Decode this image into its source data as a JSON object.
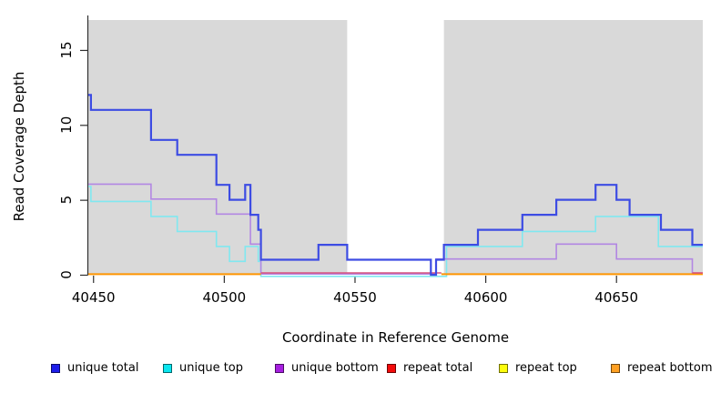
{
  "figure": {
    "xlabel": "Coordinate in Reference Genome",
    "ylabel": "Read Coverage Depth"
  },
  "legend": [
    {
      "label": "unique total",
      "color": "#1d1dea"
    },
    {
      "label": "unique top",
      "color": "#0ae6ef"
    },
    {
      "label": "unique bottom",
      "color": "#a61fe0"
    },
    {
      "label": "repeat total",
      "color": "#f30b0b"
    },
    {
      "label": "repeat top",
      "color": "#fdfd0c"
    },
    {
      "label": "repeat bottom",
      "color": "#ffa022"
    }
  ],
  "chart_data": {
    "type": "step-line",
    "title": "",
    "xlabel": "Coordinate in Reference Genome",
    "ylabel": "Read Coverage Depth",
    "xlim": [
      40448,
      40683
    ],
    "ylim": [
      0,
      17
    ],
    "xticks": [
      40450,
      40500,
      40550,
      40600,
      40650
    ],
    "yticks": [
      0,
      5,
      10,
      15
    ],
    "grid": false,
    "panel_color": "#d9d9d9",
    "gap_color": "#ffffff",
    "axis_color": "#2f2f2f",
    "background_bands": [
      {
        "x0": 40448,
        "x1": 40547
      },
      {
        "x0": 40584,
        "x1": 40683
      }
    ],
    "gap_region": {
      "x0": 40547,
      "x1": 40584
    },
    "series": [
      {
        "name": "unique top",
        "color": "#80e8f0",
        "width": 1.6,
        "y_offset": 1.8,
        "segments": [
          [
            [
              40448,
              6
            ],
            [
              40449,
              5
            ],
            [
              40472,
              4
            ],
            [
              40482,
              3
            ],
            [
              40497,
              2
            ],
            [
              40502,
              1
            ],
            [
              40508,
              2
            ],
            [
              40513,
              1
            ],
            [
              40514,
              0
            ],
            [
              40585,
              2
            ],
            [
              40614,
              3
            ],
            [
              40642,
              4
            ],
            [
              40666,
              2
            ],
            [
              40683,
              2
            ]
          ]
        ]
      },
      {
        "name": "unique bottom",
        "color": "#b287e3",
        "width": 1.6,
        "y_offset": -0.8,
        "segments": [
          [
            [
              40448,
              6
            ],
            [
              40472,
              5
            ],
            [
              40497,
              4
            ],
            [
              40510,
              2
            ],
            [
              40514,
              0
            ],
            [
              40581,
              1
            ],
            [
              40627,
              2
            ],
            [
              40650,
              1
            ],
            [
              40679,
              0
            ],
            [
              40683,
              0
            ]
          ]
        ]
      },
      {
        "name": "repeat bottom",
        "color": "#ff9500",
        "width": 2.0,
        "y_offset": -0.6,
        "segments": [
          [
            [
              40448,
              0
            ],
            [
              40514,
              0
            ]
          ],
          [
            [
              40583,
              0
            ],
            [
              40683,
              0
            ]
          ]
        ]
      },
      {
        "name": "repeat total",
        "color": "#d7537d",
        "width": 1.6,
        "y_offset": -2.0,
        "segments": [
          [
            [
              40514,
              0
            ],
            [
              40583,
              0
            ]
          ],
          [
            [
              40679,
              0
            ],
            [
              40683,
              0
            ]
          ]
        ]
      },
      {
        "name": "repeat top",
        "color": "#fdfd0c",
        "width": 1.6,
        "y_offset": 0,
        "segments": []
      },
      {
        "name": "unique total",
        "color": "#3d4ce3",
        "width": 2.2,
        "y_offset": 0,
        "segments": [
          [
            [
              40448,
              12
            ],
            [
              40449,
              11
            ],
            [
              40472,
              9
            ],
            [
              40482,
              8
            ],
            [
              40497,
              6
            ],
            [
              40502,
              5
            ],
            [
              40508,
              6
            ],
            [
              40510,
              4
            ],
            [
              40513,
              3
            ],
            [
              40514,
              1
            ],
            [
              40536,
              2
            ],
            [
              40547,
              1
            ],
            [
              40579,
              0
            ],
            [
              40581,
              1
            ],
            [
              40584,
              2
            ],
            [
              40597,
              3
            ],
            [
              40614,
              4
            ],
            [
              40627,
              5
            ],
            [
              40642,
              6
            ],
            [
              40650,
              5
            ],
            [
              40655,
              4
            ],
            [
              40667,
              3
            ],
            [
              40679,
              2
            ],
            [
              40683,
              2
            ]
          ]
        ]
      }
    ]
  }
}
